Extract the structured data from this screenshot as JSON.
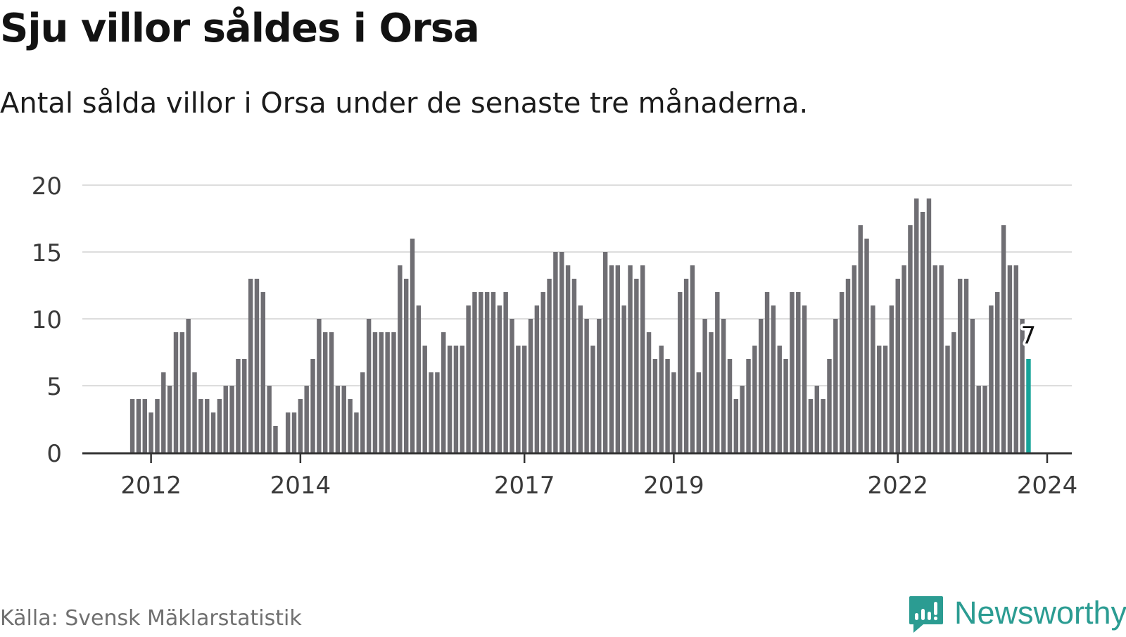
{
  "title": "Sju villor såldes i Orsa",
  "subtitle": "Antal sålda villor i Orsa under de senaste tre månaderna.",
  "source": "Källa: Svensk Mäklarstatistik",
  "brand": {
    "name": "Newsworthy",
    "icon": "newsworthy-logo-icon",
    "color": "#2b9c92"
  },
  "colors": {
    "bar": "#6f6e73",
    "highlight": "#16a399",
    "grid": "#dddddd",
    "axis": "#333333"
  },
  "chart_data": {
    "type": "bar",
    "title": "Sju villor såldes i Orsa",
    "xlabel": "",
    "ylabel": "",
    "ylim": [
      0,
      20
    ],
    "yticks": [
      0,
      5,
      10,
      15,
      20
    ],
    "grid": true,
    "x_start": "2011-10",
    "xticks": [
      "2012",
      "2014",
      "2017",
      "2019",
      "2022",
      "2024"
    ],
    "x_range": [
      2011.08,
      2024.33
    ],
    "values": [
      4,
      4,
      4,
      3,
      4,
      6,
      5,
      9,
      9,
      10,
      6,
      4,
      4,
      3,
      4,
      5,
      5,
      7,
      7,
      13,
      13,
      12,
      5,
      2,
      0,
      3,
      3,
      4,
      5,
      7,
      10,
      9,
      9,
      5,
      5,
      4,
      3,
      6,
      10,
      9,
      9,
      9,
      9,
      14,
      13,
      16,
      11,
      8,
      6,
      6,
      9,
      8,
      8,
      8,
      11,
      12,
      12,
      12,
      12,
      11,
      12,
      10,
      8,
      8,
      10,
      11,
      12,
      13,
      15,
      15,
      14,
      13,
      11,
      10,
      8,
      10,
      15,
      14,
      14,
      11,
      14,
      13,
      14,
      9,
      7,
      8,
      7,
      6,
      12,
      13,
      14,
      6,
      10,
      9,
      12,
      10,
      7,
      4,
      5,
      7,
      8,
      10,
      12,
      11,
      8,
      7,
      12,
      12,
      11,
      4,
      5,
      4,
      7,
      10,
      12,
      13,
      14,
      17,
      16,
      11,
      8,
      8,
      11,
      13,
      14,
      17,
      19,
      18,
      19,
      14,
      14,
      8,
      9,
      13,
      13,
      10,
      5,
      5,
      11,
      12,
      17,
      14,
      14,
      10,
      7
    ],
    "highlight": {
      "value": 7,
      "label": "7"
    }
  }
}
